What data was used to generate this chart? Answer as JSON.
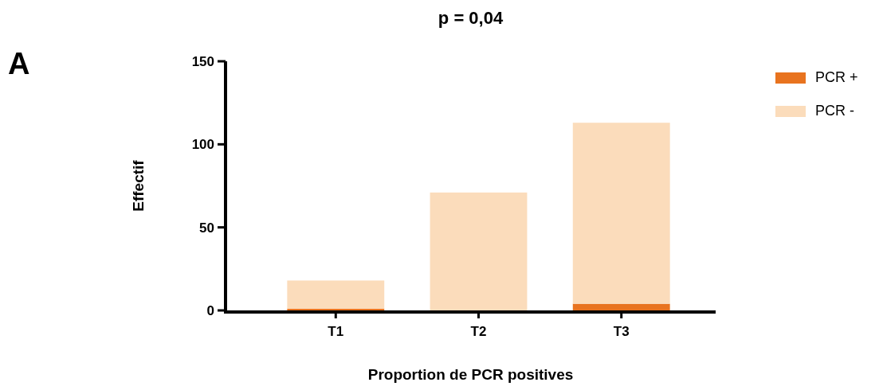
{
  "chart_data": {
    "type": "bar",
    "title": "p = 0,04",
    "annotations": [
      "A"
    ],
    "xlabel": "Proportion de PCR positives",
    "ylabel": "Effectif",
    "categories": [
      "T1",
      "T2",
      "T3"
    ],
    "stacked": true,
    "series": [
      {
        "name": "PCR +",
        "color": "#e8731f",
        "values": [
          1,
          0,
          4
        ]
      },
      {
        "name": "PCR -",
        "color": "#fbdcbb",
        "values": [
          17,
          71,
          109
        ]
      }
    ],
    "ylim": [
      0,
      150
    ],
    "yticks": [
      0,
      50,
      100,
      150
    ],
    "grid": false,
    "legend": "top right"
  }
}
